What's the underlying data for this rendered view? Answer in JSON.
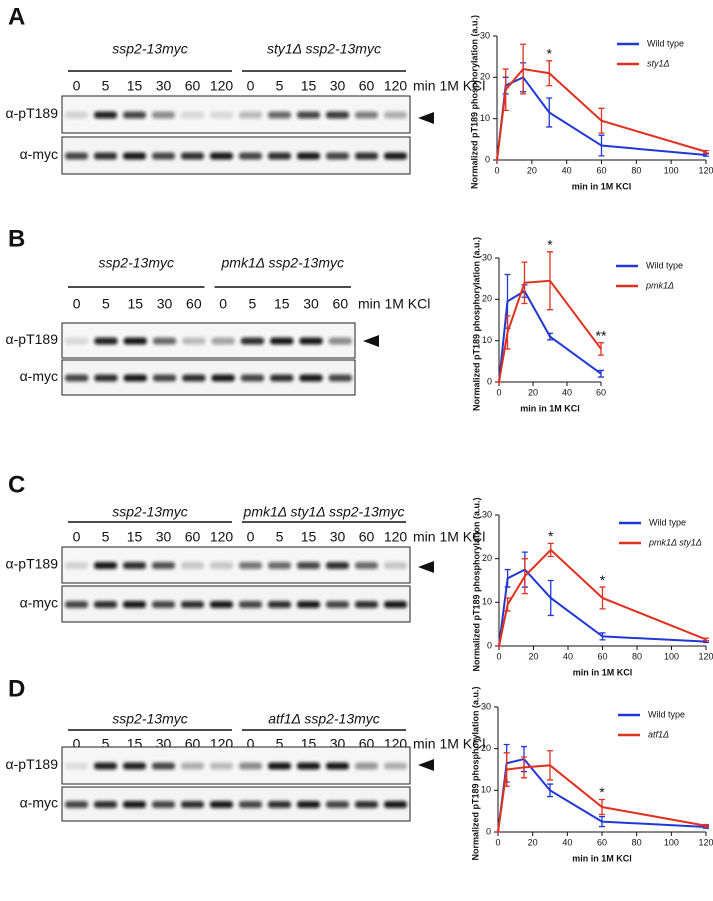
{
  "panels": [
    {
      "letter": "A",
      "groups": [
        "ssp2-13myc",
        "sty1Δ ssp2-13myc"
      ],
      "lanes": [
        0,
        5,
        15,
        30,
        60,
        120,
        0,
        5,
        15,
        30,
        60,
        120
      ],
      "unit": "min 1M KCl",
      "rows": [
        "α-pT189",
        "α-myc"
      ]
    },
    {
      "letter": "B",
      "groups": [
        "ssp2-13myc",
        "pmk1Δ ssp2-13myc"
      ],
      "lanes": [
        0,
        5,
        15,
        30,
        60,
        0,
        5,
        15,
        30,
        60
      ],
      "unit": "min 1M KCl",
      "rows": [
        "α-pT189",
        "α-myc"
      ]
    },
    {
      "letter": "C",
      "groups": [
        "ssp2-13myc",
        "pmk1Δ sty1Δ ssp2-13myc"
      ],
      "lanes": [
        0,
        5,
        15,
        30,
        60,
        120,
        0,
        5,
        15,
        30,
        60,
        120
      ],
      "unit": "min 1M KCl",
      "rows": [
        "α-pT189",
        "α-myc"
      ]
    },
    {
      "letter": "D",
      "groups": [
        "ssp2-13myc",
        "atf1Δ ssp2-13myc"
      ],
      "lanes": [
        0,
        5,
        15,
        30,
        60,
        120,
        0,
        5,
        15,
        30,
        60,
        120
      ],
      "unit": "min 1M KCl",
      "rows": [
        "α-pT189",
        "α-myc"
      ]
    }
  ],
  "chart_data": [
    {
      "type": "line",
      "y_label": "Normalized pT189 phosphorylation (a.u.)",
      "x_label": "min in 1M KCl",
      "x": [
        0,
        5,
        15,
        30,
        60,
        120
      ],
      "xlim": [
        0,
        120
      ],
      "xticks": [
        0,
        20,
        40,
        60,
        80,
        100,
        120
      ],
      "ylim": [
        0,
        30
      ],
      "yticks": [
        0,
        10,
        20,
        30
      ],
      "series": [
        {
          "name": "Wild type",
          "color": "#2039d4",
          "values": [
            0,
            18,
            20,
            11.5,
            3.5,
            1.2
          ],
          "errors": [
            0,
            2,
            3.5,
            3.5,
            2.5,
            0.3
          ]
        },
        {
          "name": "sty1Δ",
          "color": "#e0301e",
          "values": [
            0,
            17,
            22,
            21,
            9.5,
            2
          ],
          "errors": [
            0,
            5,
            6,
            3,
            3,
            0.3
          ]
        }
      ],
      "annotations": [
        {
          "x": 30,
          "text": "*"
        }
      ]
    },
    {
      "type": "line",
      "y_label": "Normalized pT189 phosphorylation (a.u.)",
      "x_label": "min in 1M KCl",
      "x": [
        0,
        5,
        15,
        30,
        60
      ],
      "xlim": [
        0,
        60
      ],
      "xticks": [
        0,
        20,
        40,
        60
      ],
      "ylim": [
        0,
        30
      ],
      "yticks": [
        0,
        10,
        20,
        30
      ],
      "series": [
        {
          "name": "Wild type",
          "color": "#2039d4",
          "values": [
            0,
            19.5,
            22,
            11,
            2
          ],
          "errors": [
            0,
            6.5,
            1.5,
            0.8,
            0.8
          ]
        },
        {
          "name": "pmk1Δ",
          "color": "#e0301e",
          "values": [
            0,
            12,
            24,
            24.5,
            8
          ],
          "errors": [
            0,
            4,
            5,
            7,
            1.5
          ]
        }
      ],
      "annotations": [
        {
          "x": 30,
          "text": "*"
        },
        {
          "x": 60,
          "text": "**"
        }
      ]
    },
    {
      "type": "line",
      "y_label": "Normalized pT189 phosphorylation (a.u.)",
      "x_label": "min in 1M KCl",
      "x": [
        0,
        5,
        15,
        30,
        60,
        120
      ],
      "xlim": [
        0,
        120
      ],
      "xticks": [
        0,
        20,
        40,
        60,
        80,
        100,
        120
      ],
      "ylim": [
        0,
        30
      ],
      "yticks": [
        0,
        10,
        20,
        30
      ],
      "series": [
        {
          "name": "Wild type",
          "color": "#2039d4",
          "values": [
            0,
            15.5,
            17.5,
            11,
            2.2,
            1
          ],
          "errors": [
            0,
            2,
            4,
            4,
            0.8,
            0.2
          ]
        },
        {
          "name": "pmk1Δ sty1Δ",
          "color": "#e0301e",
          "values": [
            0,
            9.5,
            16,
            22,
            11,
            1.5
          ],
          "errors": [
            0,
            1.5,
            4,
            1.5,
            2.5,
            0.3
          ]
        }
      ],
      "annotations": [
        {
          "x": 30,
          "text": "*"
        },
        {
          "x": 60,
          "text": "*"
        }
      ]
    },
    {
      "type": "line",
      "y_label": "Normalized pT189 phosphorylation (a.u.)",
      "x_label": "min in 1M KCl",
      "x": [
        0,
        5,
        15,
        30,
        60,
        120
      ],
      "xlim": [
        0,
        120
      ],
      "xticks": [
        0,
        20,
        40,
        60,
        80,
        100,
        120
      ],
      "ylim": [
        0,
        30
      ],
      "yticks": [
        0,
        10,
        20,
        30
      ],
      "series": [
        {
          "name": "Wild type",
          "color": "#2039d4",
          "values": [
            0,
            16.5,
            17.5,
            10,
            2.5,
            1.2
          ],
          "errors": [
            0,
            4.5,
            3,
            1.5,
            1.2,
            0.3
          ]
        },
        {
          "name": "atf1Δ",
          "color": "#e0301e",
          "values": [
            0,
            15,
            15.5,
            16,
            6,
            1.5
          ],
          "errors": [
            0,
            4,
            2.5,
            3.5,
            1.8,
            0.3
          ]
        }
      ],
      "annotations": [
        {
          "x": 60,
          "text": "*"
        }
      ]
    }
  ]
}
